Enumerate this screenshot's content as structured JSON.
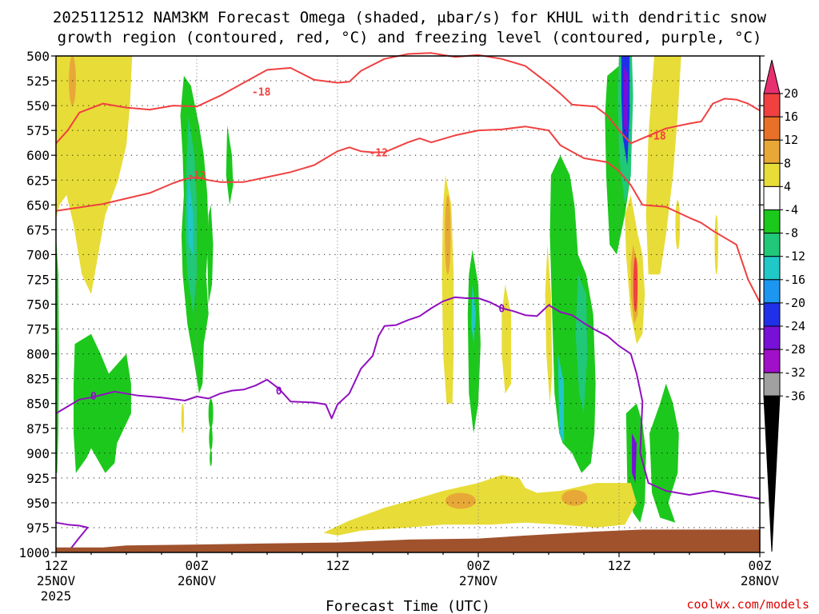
{
  "chart_data": {
    "type": "heatmap",
    "title_line1": "2025112512 NAM3KM Forecast Omega (shaded, μbar/s) for KHUL with dendritic snow",
    "title_line2": "growth region (contoured, red, °C) and freezing level (contoured, purple, °C)",
    "xlabel": "Forecast Time (UTC)",
    "credit": "coolwx.com/models",
    "y_levels": [
      "500",
      "525",
      "550",
      "575",
      "600",
      "625",
      "650",
      "675",
      "700",
      "725",
      "750",
      "775",
      "800",
      "825",
      "850",
      "875",
      "900",
      "925",
      "950",
      "975",
      "1000"
    ],
    "x_ticks": [
      {
        "hour": 0,
        "line1": "12Z",
        "line2": "25NOV",
        "line3": "2025"
      },
      {
        "hour": 12,
        "line1": "00Z",
        "line2": "26NOV",
        "line3": ""
      },
      {
        "hour": 24,
        "line1": "12Z",
        "line2": "",
        "line3": ""
      },
      {
        "hour": 36,
        "line1": "00Z",
        "line2": "27NOV",
        "line3": ""
      },
      {
        "hour": 48,
        "line1": "12Z",
        "line2": "",
        "line3": ""
      },
      {
        "hour": 60,
        "line1": "00Z",
        "line2": "28NOV",
        "line3": ""
      }
    ],
    "xlim_hours": [
      0,
      60
    ],
    "ylim_hpa": [
      500,
      1000
    ],
    "colorbar": {
      "labels": [
        "20",
        "16",
        "12",
        "8",
        "4",
        "-4",
        "-8",
        "-12",
        "-16",
        "-20",
        "-24",
        "-28",
        "-32",
        "-36"
      ],
      "colors": [
        "#e83070",
        "#f04040",
        "#e87028",
        "#e8a838",
        "#e8dc38",
        "#ffffff",
        "#1cc81c",
        "#20c878",
        "#20c8c8",
        "#1c96f0",
        "#2030e8",
        "#7810d8",
        "#a010c8",
        "#a0a0a0",
        "#000000"
      ]
    },
    "contour_labels": [
      {
        "text": "-18",
        "color": "#f04040",
        "hour": 17.5,
        "hpa": 536
      },
      {
        "text": "-12",
        "color": "#f04040",
        "hour": 12.0,
        "hpa": 620
      },
      {
        "text": "-12",
        "color": "#f04040",
        "hour": 27.5,
        "hpa": 597
      },
      {
        "text": "-18",
        "color": "#f04040",
        "hour": 51.2,
        "hpa": 580
      },
      {
        "text": "0",
        "color": "#9010c0",
        "hour": 3.2,
        "hpa": 842
      },
      {
        "text": "0",
        "color": "#9010c0",
        "hour": 19.0,
        "hpa": 837
      },
      {
        "text": "0",
        "color": "#9010c0",
        "hour": 38.0,
        "hpa": 754
      }
    ],
    "isotherm_red_minus12": [
      [
        0,
        656
      ],
      [
        4,
        649
      ],
      [
        8,
        638
      ],
      [
        10,
        628
      ],
      [
        11,
        624
      ],
      [
        12,
        622
      ],
      [
        13,
        625
      ],
      [
        14,
        627
      ],
      [
        16,
        627
      ],
      [
        18,
        622
      ],
      [
        20,
        617
      ],
      [
        22,
        610
      ],
      [
        23,
        603
      ],
      [
        24,
        596
      ],
      [
        25,
        592
      ],
      [
        26,
        596
      ],
      [
        27,
        597
      ],
      [
        28,
        597
      ],
      [
        30,
        587
      ],
      [
        31,
        583
      ],
      [
        32,
        587
      ],
      [
        34,
        580
      ],
      [
        36,
        575
      ],
      [
        38,
        574
      ],
      [
        40,
        571
      ],
      [
        42,
        575
      ],
      [
        43,
        590
      ],
      [
        45,
        603
      ],
      [
        47,
        607
      ],
      [
        48,
        616
      ],
      [
        49,
        630
      ],
      [
        50,
        650
      ],
      [
        52,
        652
      ],
      [
        54,
        663
      ],
      [
        55,
        668
      ],
      [
        56,
        676
      ],
      [
        57,
        683
      ],
      [
        58,
        690
      ],
      [
        59,
        725
      ],
      [
        60,
        748
      ]
    ],
    "isotherm_red_minus18": [
      [
        0,
        588
      ],
      [
        1,
        575
      ],
      [
        2,
        557
      ],
      [
        4,
        548
      ],
      [
        6,
        552
      ],
      [
        8,
        554
      ],
      [
        10,
        550
      ],
      [
        12,
        551
      ],
      [
        14,
        540
      ],
      [
        16,
        527
      ],
      [
        18,
        514
      ],
      [
        20,
        512
      ],
      [
        22,
        524
      ],
      [
        24,
        527
      ],
      [
        25,
        526
      ],
      [
        26,
        515
      ],
      [
        28,
        503
      ],
      [
        30,
        498
      ],
      [
        32,
        497
      ],
      [
        34,
        501
      ],
      [
        36,
        499
      ],
      [
        38,
        503
      ],
      [
        40,
        510
      ],
      [
        42,
        528
      ],
      [
        43,
        538
      ],
      [
        44,
        549
      ],
      [
        46,
        551
      ],
      [
        47,
        560
      ],
      [
        48,
        575
      ],
      [
        49,
        588
      ],
      [
        50,
        583
      ],
      [
        52,
        573
      ],
      [
        54,
        568
      ],
      [
        55,
        566
      ],
      [
        56,
        548
      ],
      [
        57,
        543
      ],
      [
        58,
        544
      ],
      [
        59,
        548
      ],
      [
        60,
        555
      ]
    ],
    "isotherm_purple_zero": [
      [
        0,
        860
      ],
      [
        1,
        853
      ],
      [
        2,
        846
      ],
      [
        3,
        844
      ],
      [
        5,
        838
      ],
      [
        7,
        842
      ],
      [
        9,
        844
      ],
      [
        11,
        847
      ],
      [
        12,
        843
      ],
      [
        13,
        845
      ],
      [
        14,
        840
      ],
      [
        15,
        837
      ],
      [
        16,
        836
      ],
      [
        17,
        832
      ],
      [
        18,
        826
      ],
      [
        19,
        835
      ],
      [
        20,
        848
      ],
      [
        22,
        849
      ],
      [
        23,
        851
      ],
      [
        23.5,
        865
      ],
      [
        24,
        851
      ],
      [
        25,
        840
      ],
      [
        26,
        815
      ],
      [
        27,
        802
      ],
      [
        27.5,
        782
      ],
      [
        28,
        772
      ],
      [
        29,
        771
      ],
      [
        30,
        766
      ],
      [
        31,
        762
      ],
      [
        32,
        754
      ],
      [
        33,
        747
      ],
      [
        34,
        743
      ],
      [
        35,
        744
      ],
      [
        36,
        744
      ],
      [
        37,
        748
      ],
      [
        38,
        754
      ],
      [
        39,
        757
      ],
      [
        40,
        761
      ],
      [
        41,
        762
      ],
      [
        42,
        751
      ],
      [
        43,
        758
      ],
      [
        44,
        761
      ],
      [
        45,
        769
      ],
      [
        46,
        776
      ],
      [
        47,
        782
      ],
      [
        48,
        792
      ],
      [
        49,
        800
      ],
      [
        49.5,
        820
      ],
      [
        50,
        848
      ],
      [
        49.8,
        900
      ],
      [
        50.5,
        930
      ],
      [
        52,
        938
      ],
      [
        54,
        942
      ],
      [
        56,
        938
      ],
      [
        58,
        942
      ],
      [
        60,
        946
      ]
    ],
    "isotherm_purple_zero_low": [
      [
        0,
        970
      ],
      [
        1,
        972
      ],
      [
        2,
        973
      ],
      [
        2.7,
        975
      ],
      [
        2,
        985
      ],
      [
        1,
        1000
      ]
    ]
  }
}
